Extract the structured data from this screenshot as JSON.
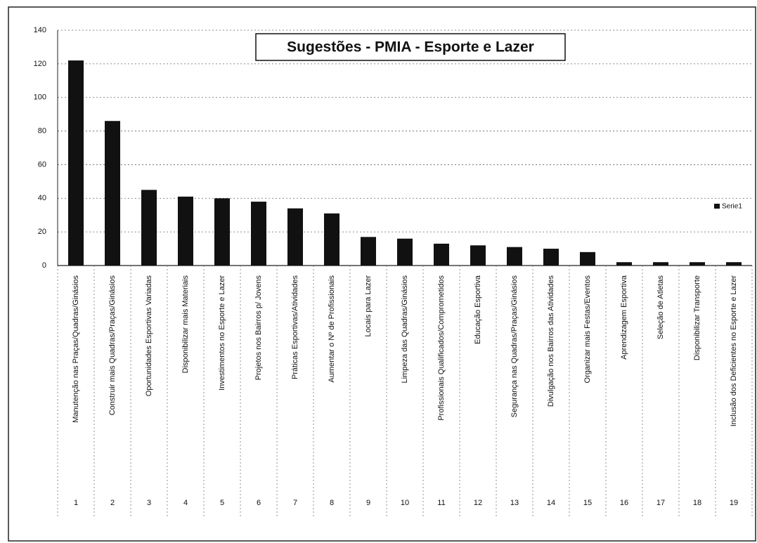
{
  "chart_data": {
    "type": "bar",
    "title": "Sugestões - PMIA - Esporte e Lazer",
    "categories": [
      "Manutenção nas Praças/Quadras/Ginásios",
      "Construir mais Quadras/Praças/Ginásios",
      "Oportunidades Esportivas Variadas",
      "Disponibilizar mais Materiais",
      "Investimentos no Esporte e Lazer",
      "Projetos nos Bairros p/ Jovens",
      "Práticas Esportivas/Atividades",
      "Aumentar o Nº de Profissionais",
      "Locais para Lazer",
      "Limpeza das Quadras/Ginásios",
      "Profissionais Qualificados/Comprometidos",
      "Educação Esportiva",
      "Segurança nas Quadras/Praças/Ginásios",
      "Divulgação nos Bairros das Atividades",
      "Organizar mais Festas/Eventos",
      "Aprendizagem Esportiva",
      "Seleção de Atletas",
      "Disponibilizar Transporte",
      "Inclusão dos Deficientes no Esporte e Lazer"
    ],
    "category_numbers": [
      "1",
      "2",
      "3",
      "4",
      "5",
      "6",
      "7",
      "8",
      "9",
      "10",
      "11",
      "12",
      "13",
      "14",
      "15",
      "16",
      "17",
      "18",
      "19"
    ],
    "series": [
      {
        "name": "Serie1",
        "color": "#111111",
        "values": [
          122,
          86,
          45,
          41,
          40,
          38,
          34,
          31,
          17,
          16,
          13,
          12,
          11,
          10,
          8,
          2,
          2,
          2,
          2
        ]
      }
    ],
    "ylim": [
      0,
      140
    ],
    "yticks": [
      0,
      20,
      40,
      60,
      80,
      100,
      120,
      140
    ],
    "grid": true,
    "legend": "right"
  }
}
